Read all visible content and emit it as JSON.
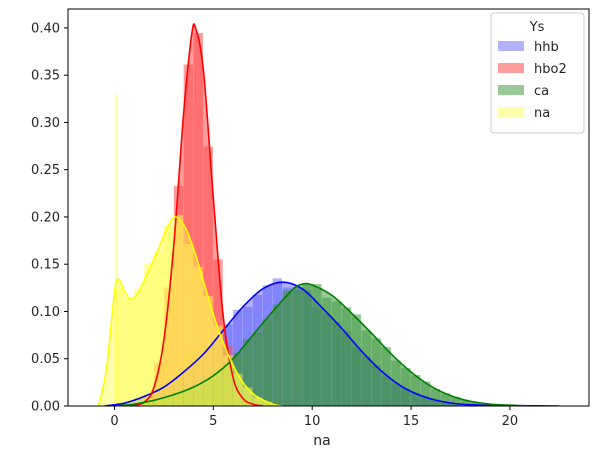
{
  "chart_data": {
    "type": "area",
    "title": "",
    "xlabel": "na",
    "ylabel": "",
    "xlim": [
      -2.35,
      24.0
    ],
    "ylim": [
      0,
      0.42
    ],
    "x_ticks": [
      0,
      5,
      10,
      15,
      20
    ],
    "x_tick_labels": [
      "0",
      "5",
      "10",
      "15",
      "20"
    ],
    "y_ticks": [
      0.0,
      0.05,
      0.1,
      0.15,
      0.2,
      0.25,
      0.3,
      0.35,
      0.4
    ],
    "y_tick_labels": [
      "0.00",
      "0.05",
      "0.10",
      "0.15",
      "0.20",
      "0.25",
      "0.30",
      "0.35",
      "0.40"
    ],
    "grid": false,
    "legend": {
      "title": "Ys",
      "placement": "top-right"
    },
    "series": [
      {
        "name": "hhb",
        "color": "#0000ff",
        "hist_color": "rgba(70,70,255,0.42)",
        "hist_x_range": [
          -0.5,
          22.5
        ],
        "kde": [
          [
            -0.5,
            0.0
          ],
          [
            0.5,
            0.003
          ],
          [
            1.5,
            0.01
          ],
          [
            2.5,
            0.02
          ],
          [
            3.5,
            0.036
          ],
          [
            4.5,
            0.055
          ],
          [
            5.5,
            0.08
          ],
          [
            6.5,
            0.105
          ],
          [
            7.5,
            0.124
          ],
          [
            8.5,
            0.131
          ],
          [
            9.5,
            0.124
          ],
          [
            10.5,
            0.104
          ],
          [
            11.5,
            0.082
          ],
          [
            12.5,
            0.058
          ],
          [
            13.5,
            0.037
          ],
          [
            14.5,
            0.021
          ],
          [
            15.5,
            0.011
          ],
          [
            16.5,
            0.005
          ],
          [
            17.5,
            0.002
          ],
          [
            19.0,
            0.0007
          ],
          [
            21.0,
            0.0002
          ],
          [
            22.5,
            0.0
          ]
        ]
      },
      {
        "name": "hbo2",
        "color": "#ff0000",
        "hist_color": "rgba(255,75,75,0.55)",
        "hist_x_range": [
          1.0,
          7.5
        ],
        "kde": [
          [
            0.8,
            0.0
          ],
          [
            1.5,
            0.004
          ],
          [
            2.0,
            0.02
          ],
          [
            2.5,
            0.07
          ],
          [
            3.0,
            0.17
          ],
          [
            3.5,
            0.31
          ],
          [
            3.9,
            0.392
          ],
          [
            4.1,
            0.4
          ],
          [
            4.5,
            0.355
          ],
          [
            5.0,
            0.22
          ],
          [
            5.5,
            0.095
          ],
          [
            6.0,
            0.03
          ],
          [
            6.5,
            0.008
          ],
          [
            7.0,
            0.002
          ],
          [
            7.5,
            0.0
          ]
        ]
      },
      {
        "name": "ca",
        "color": "#008000",
        "hist_color": "rgba(60,150,60,0.52)",
        "hist_x_range": [
          0.0,
          21.0
        ],
        "kde": [
          [
            0.0,
            0.0
          ],
          [
            1.0,
            0.002
          ],
          [
            2.0,
            0.006
          ],
          [
            3.0,
            0.012
          ],
          [
            4.0,
            0.02
          ],
          [
            5.0,
            0.032
          ],
          [
            6.0,
            0.05
          ],
          [
            7.0,
            0.075
          ],
          [
            8.0,
            0.1
          ],
          [
            9.0,
            0.123
          ],
          [
            9.5,
            0.129
          ],
          [
            10.0,
            0.128
          ],
          [
            11.0,
            0.117
          ],
          [
            12.0,
            0.098
          ],
          [
            13.0,
            0.077
          ],
          [
            14.0,
            0.055
          ],
          [
            15.0,
            0.036
          ],
          [
            16.0,
            0.021
          ],
          [
            17.0,
            0.011
          ],
          [
            18.0,
            0.005
          ],
          [
            19.0,
            0.002
          ],
          [
            21.0,
            0.0
          ]
        ]
      },
      {
        "name": "na",
        "color": "#ffff00",
        "hist_color": "rgba(255,255,80,0.48)",
        "hist_x_range": [
          0.0,
          8.0
        ],
        "spike": {
          "x": 0.1,
          "y": 0.33
        },
        "kde": [
          [
            -0.8,
            0.0
          ],
          [
            -0.4,
            0.04
          ],
          [
            0.0,
            0.12
          ],
          [
            0.2,
            0.134
          ],
          [
            0.5,
            0.122
          ],
          [
            0.8,
            0.113
          ],
          [
            1.2,
            0.12
          ],
          [
            1.7,
            0.142
          ],
          [
            2.2,
            0.165
          ],
          [
            2.7,
            0.19
          ],
          [
            3.1,
            0.2
          ],
          [
            3.6,
            0.188
          ],
          [
            4.1,
            0.16
          ],
          [
            4.7,
            0.118
          ],
          [
            5.3,
            0.078
          ],
          [
            6.0,
            0.043
          ],
          [
            6.6,
            0.022
          ],
          [
            7.2,
            0.01
          ],
          [
            8.0,
            0.002
          ],
          [
            8.5,
            0.0
          ]
        ]
      }
    ]
  }
}
